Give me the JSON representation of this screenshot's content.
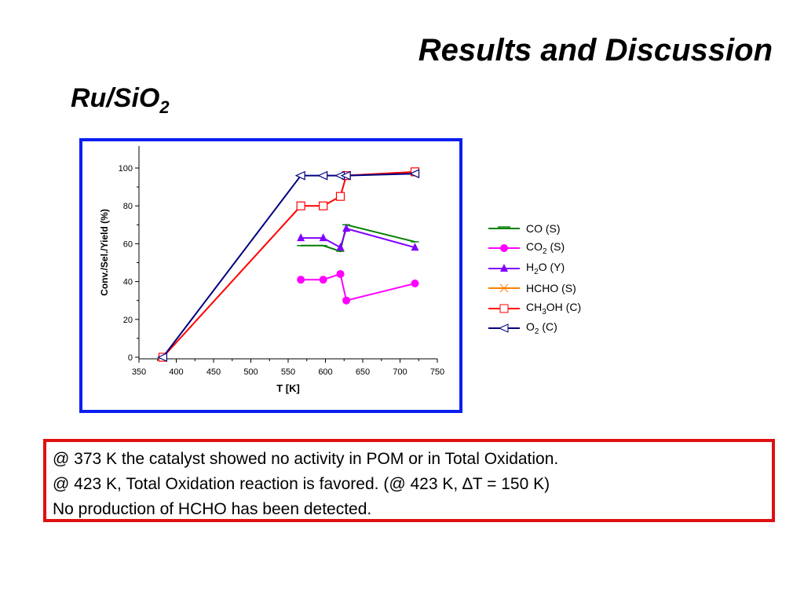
{
  "slide": {
    "title": "Results and Discussion",
    "subtitle_main": "Ru/SiO",
    "subtitle_sub": "2"
  },
  "colors": {
    "frame": "#0a1ef0",
    "note_border": "#e01010"
  },
  "chart_data": {
    "type": "line",
    "xlabel": "T [K]",
    "ylabel": "Conv./Sel./Yield (%)",
    "xlim": [
      350,
      750
    ],
    "ylim": [
      0,
      100
    ],
    "xticks": [
      350,
      400,
      450,
      500,
      550,
      600,
      650,
      700,
      750
    ],
    "yticks": [
      0,
      20,
      40,
      60,
      80,
      100
    ],
    "legend_position": "right",
    "series": [
      {
        "name": "CO (S)",
        "label_main": "CO",
        "label_sub": "",
        "label_suffix": " (S)",
        "color": "#008000",
        "marker": "dash",
        "x": [
          567,
          597,
          620,
          628,
          720
        ],
        "y": [
          59,
          59,
          56,
          70,
          61
        ]
      },
      {
        "name": "CO2 (S)",
        "label_main": "CO",
        "label_sub": "2",
        "label_suffix": " (S)",
        "color": "#ff00ff",
        "marker": "circle",
        "x": [
          567,
          597,
          620,
          628,
          720
        ],
        "y": [
          41,
          41,
          44,
          30,
          39
        ]
      },
      {
        "name": "H2O (Y)",
        "label_main": "H",
        "label_sub": "2",
        "label_suffix": "O (Y)",
        "color": "#8000ff",
        "marker": "triangle",
        "x": [
          567,
          597,
          620,
          628,
          720
        ],
        "y": [
          63,
          63,
          58,
          68,
          58
        ]
      },
      {
        "name": "HCHO (S)",
        "label_main": "HCHO",
        "label_sub": "",
        "label_suffix": " (S)",
        "color": "#ff8000",
        "marker": "x",
        "x": [],
        "y": []
      },
      {
        "name": "CH3OH (C)",
        "label_main": "CH",
        "label_sub": "3",
        "label_suffix": "OH (C)",
        "color": "#ff0000",
        "marker": "square",
        "x": [
          382,
          567,
          597,
          620,
          628,
          720
        ],
        "y": [
          0,
          80,
          80,
          85,
          96,
          98
        ]
      },
      {
        "name": "O2 (C)",
        "label_main": "O",
        "label_sub": "2",
        "label_suffix": " (C)",
        "color": "#000080",
        "marker": "triangle-left",
        "x": [
          382,
          567,
          597,
          620,
          628,
          720
        ],
        "y": [
          0,
          96,
          96,
          96,
          96,
          97
        ]
      }
    ]
  },
  "notes": [
    "@ 373 K the catalyst showed no activity in POM or in Total Oxidation.",
    "@ 423 K, Total Oxidation reaction is favored. (@ 423 K, ∆T = 150 K)",
    "No production of HCHO has been detected."
  ]
}
